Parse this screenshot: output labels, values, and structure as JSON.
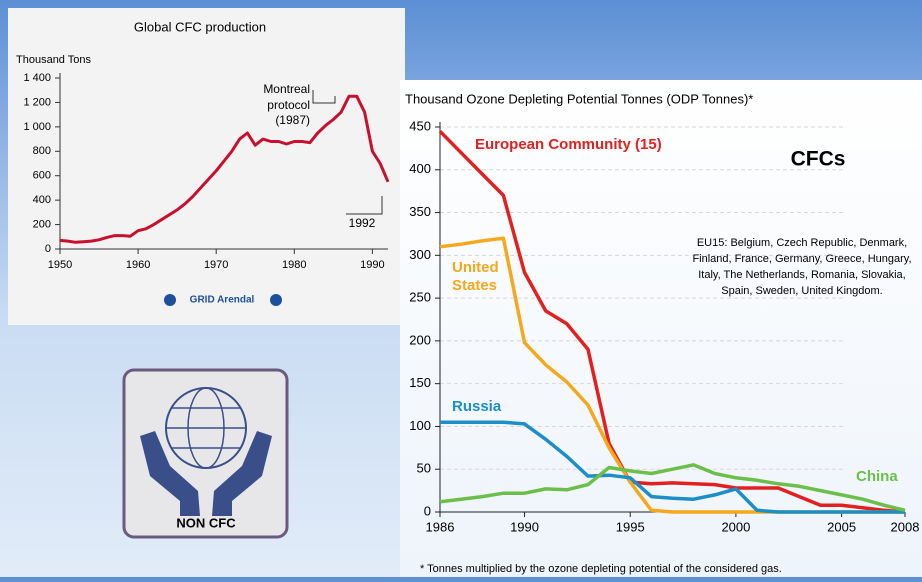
{
  "chart_data": [
    {
      "type": "line",
      "title": "Global CFC production",
      "y_label": "Thousand Tons",
      "x": [
        1950,
        1951,
        1952,
        1953,
        1954,
        1955,
        1956,
        1957,
        1958,
        1959,
        1960,
        1961,
        1962,
        1963,
        1964,
        1965,
        1966,
        1967,
        1968,
        1969,
        1970,
        1971,
        1972,
        1973,
        1974,
        1975,
        1976,
        1977,
        1978,
        1979,
        1980,
        1981,
        1982,
        1983,
        1984,
        1985,
        1986,
        1987,
        1988,
        1989,
        1990,
        1991,
        1992
      ],
      "values": [
        70,
        65,
        55,
        60,
        65,
        75,
        95,
        110,
        110,
        105,
        150,
        165,
        200,
        240,
        280,
        320,
        370,
        430,
        500,
        570,
        640,
        720,
        800,
        900,
        950,
        850,
        900,
        880,
        880,
        860,
        880,
        880,
        870,
        950,
        1010,
        1060,
        1120,
        1250,
        1250,
        1120,
        800,
        700,
        550
      ],
      "color": "#c8102e",
      "xlim": [
        1950,
        1992
      ],
      "xticks": [
        1950,
        1960,
        1970,
        1980,
        1990
      ],
      "ylim": [
        0,
        1400
      ],
      "yticks": [
        0,
        200,
        400,
        600,
        800,
        {
          "value": 1000,
          "label": "1 000"
        },
        {
          "value": 1200,
          "label": "1 200"
        },
        {
          "value": 1400,
          "label": "1 400"
        }
      ],
      "annotations": [
        "Montreal",
        "protocol",
        "(1987)",
        "1992"
      ],
      "source": "GRID Arendal"
    },
    {
      "type": "line",
      "title": "Thousand Ozone Depleting Potential Tonnes (ODP Tonnes)*",
      "x": [
        1986,
        1987,
        1988,
        1989,
        1990,
        1991,
        1992,
        1993,
        1994,
        1995,
        1996,
        1997,
        1998,
        1999,
        2000,
        2001,
        2002,
        2003,
        2004,
        2005,
        2006,
        2007,
        2008
      ],
      "series": [
        {
          "name": "European Community (15)",
          "color": "#e2201f",
          "values": [
            445,
            420,
            395,
            370,
            280,
            235,
            220,
            190,
            80,
            35,
            33,
            34,
            33,
            32,
            28,
            28,
            28,
            18,
            8,
            8,
            5,
            2,
            0
          ]
        },
        {
          "name": "United States",
          "color": "#f5a81c",
          "values": [
            310,
            313,
            317,
            320,
            198,
            172,
            152,
            125,
            75,
            35,
            2,
            0,
            0,
            0,
            0,
            0,
            0,
            0,
            0,
            0,
            0,
            0,
            0
          ]
        },
        {
          "name": "Russia",
          "color": "#1b8fc6",
          "values": [
            105,
            105,
            105,
            105,
            103,
            85,
            65,
            42,
            43,
            40,
            18,
            16,
            15,
            20,
            27,
            2,
            0,
            0,
            0,
            0,
            0,
            0,
            0
          ]
        },
        {
          "name": "China",
          "color": "#6cbf4a",
          "values": [
            12,
            15,
            18,
            22,
            22,
            27,
            26,
            32,
            52,
            48,
            45,
            50,
            55,
            45,
            40,
            37,
            33,
            30,
            25,
            20,
            15,
            8,
            2
          ]
        }
      ],
      "xlim": [
        1986,
        2008
      ],
      "xticks": [
        1986,
        1990,
        1995,
        2000,
        2005,
        2008
      ],
      "ylim": [
        0,
        450
      ],
      "yticks": [
        0,
        50,
        100,
        150,
        200,
        250,
        300,
        350,
        400,
        450
      ],
      "grid": true,
      "heading": "CFCs",
      "note": "EU15: Belgium, Czech Republic, Denmark, Finland, France, Germany, Greece, Hungary, Italy, The Netherlands, Romania, Slovakia, Spain, Sweden, United Kingdom.",
      "footnote": "* Tonnes multiplied by the ozone depleting potential of the considered gas."
    }
  ],
  "logo": {
    "label": "NON CFC"
  }
}
